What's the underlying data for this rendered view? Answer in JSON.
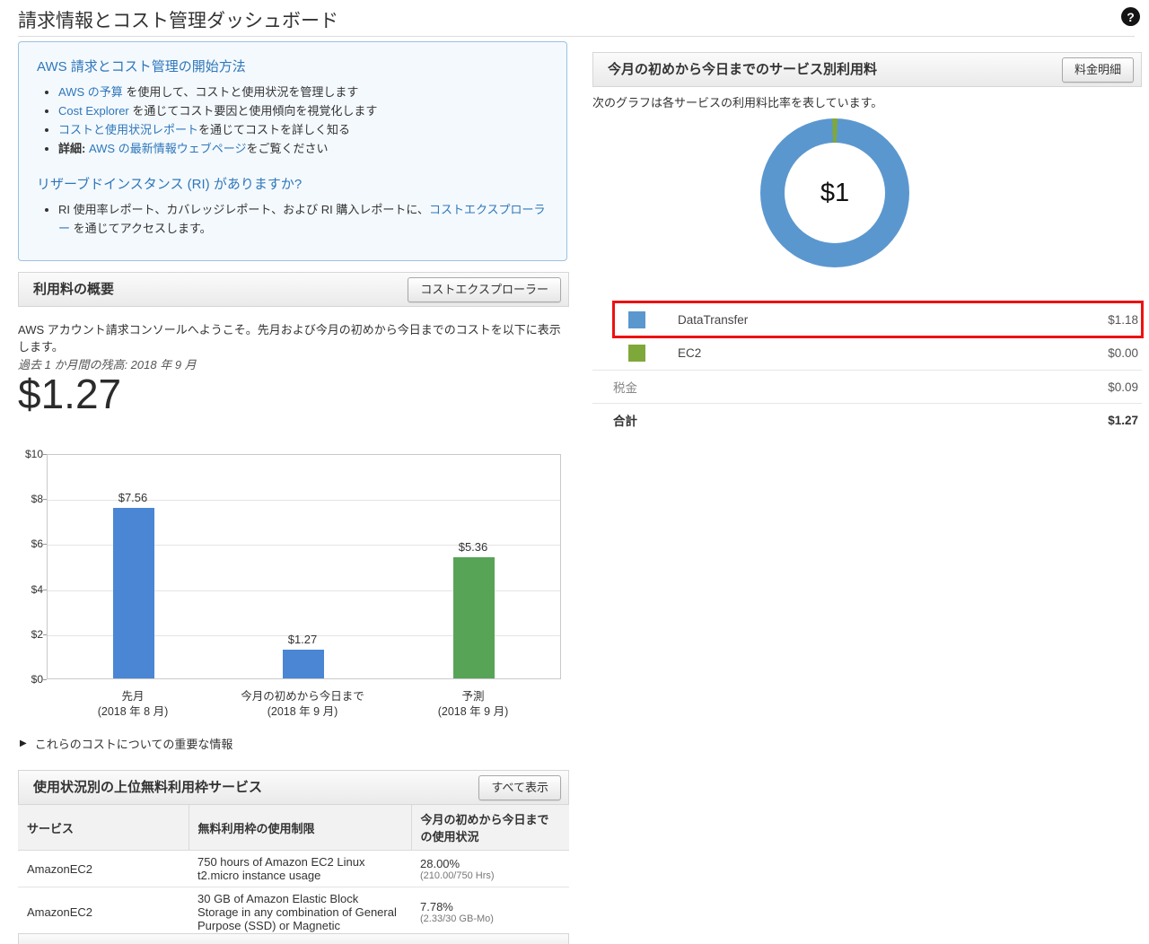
{
  "page": {
    "title": "請求情報とコスト管理ダッシュボード",
    "help_icon": "?"
  },
  "colors": {
    "link_blue": "#2e77bb",
    "bar_blue": "#4a86d3",
    "bar_green": "#57a457",
    "donut_blue": "#5b97cf",
    "donut_green": "#7fa83a",
    "highlight_red": "#ed1111"
  },
  "getting_started": {
    "heading": "AWS 請求とコスト管理の開始方法",
    "bullets": [
      [
        {
          "text": "AWS の予算",
          "style": "link"
        },
        {
          "text": " を使用して、コストと使用状況を管理します",
          "style": "plain"
        }
      ],
      [
        {
          "text": "Cost Explorer",
          "style": "link"
        },
        {
          "text": " を通じてコスト要因と使用傾向を視覚化します",
          "style": "plain"
        }
      ],
      [
        {
          "text": "コストと使用状況レポート",
          "style": "link"
        },
        {
          "text": "を通じてコストを詳しく知る",
          "style": "plain"
        }
      ],
      [
        {
          "text": "詳細:",
          "style": "bold"
        },
        {
          "text": " ",
          "style": "plain"
        },
        {
          "text": "AWS の最新情報ウェブページ",
          "style": "link"
        },
        {
          "text": "をご覧ください",
          "style": "plain"
        }
      ]
    ],
    "ri_heading": "リザーブドインスタンス (RI) がありますか?",
    "ri_bullets": [
      [
        {
          "text": "RI 使用率レポート、カバレッジレポート、および RI 購入レポートに、",
          "style": "plain"
        },
        {
          "text": "コストエクスプローラー",
          "style": "link"
        },
        {
          "text": " を通じてアクセスします。",
          "style": "plain"
        }
      ]
    ]
  },
  "usage_summary": {
    "header": "利用料の概要",
    "button": "コストエクスプローラー",
    "welcome": "AWS アカウント請求コンソールへようこそ。先月および今月の初めから今日までのコストを以下に表示します。",
    "balance_label": "過去 1 か月間の残高: 2018 年 9 月",
    "amount": "$1.27",
    "important_info": "これらのコストについての重要な情報",
    "disclosure_icon": "▶"
  },
  "chart_data": [
    {
      "type": "bar",
      "title": "利用料の概要 (先月・今月・予測)",
      "categories": [
        [
          "先月",
          "(2018 年 8 月)"
        ],
        [
          "今月の初めから今日まで",
          "(2018 年 9 月)"
        ],
        [
          "予測",
          "(2018 年 9 月)"
        ]
      ],
      "values": [
        7.56,
        1.27,
        5.36
      ],
      "data_labels": [
        "$7.56",
        "$1.27",
        "$5.36"
      ],
      "bar_colors": [
        "#4a86d3",
        "#4a86d3",
        "#57a457"
      ],
      "yticks": [
        "$0",
        "$2",
        "$4",
        "$6",
        "$8",
        "$10"
      ],
      "ylim": [
        0,
        10
      ],
      "grid": true,
      "legend": "none"
    },
    {
      "type": "pie",
      "donut": true,
      "center_label": "$1",
      "slices": [
        {
          "name": "DataTransfer",
          "value": 1.18,
          "color": "#5b97cf"
        },
        {
          "name": "EC2",
          "value": 0.0,
          "color": "#7fa83a"
        }
      ],
      "legend_position": "below"
    }
  ],
  "service_charges": {
    "header": "今月の初めから今日までのサービス別利用料",
    "button": "料金明細",
    "subtitle": "次のグラフは各サービスの利用料比率を表しています。",
    "center_label": "$1",
    "rows": [
      {
        "label": "DataTransfer",
        "value": "$1.18",
        "swatch": "#5b97cf",
        "kind": "service",
        "highlighted": true
      },
      {
        "label": "EC2",
        "value": "$0.00",
        "swatch": "#7fa83a",
        "kind": "service",
        "highlighted": false
      },
      {
        "label": "税金",
        "value": "$0.09",
        "kind": "plain",
        "highlighted": false
      },
      {
        "label": "合計",
        "value": "$1.27",
        "kind": "total",
        "highlighted": false
      }
    ]
  },
  "free_tier": {
    "header": "使用状況別の上位無料利用枠サービス",
    "button": "すべて表示",
    "columns": [
      "サービス",
      "無料利用枠の使用制限",
      "今月の初めから今日までの使用状況"
    ],
    "rows": [
      {
        "service": "AmazonEC2",
        "limit": "750 hours of Amazon EC2 Linux t2.micro instance usage",
        "usage_pct": "28.00%",
        "usage_detail": "(210.00/750 Hrs)"
      },
      {
        "service": "AmazonEC2",
        "limit": "30 GB of Amazon Elastic Block Storage in any combination of General Purpose (SSD) or Magnetic",
        "usage_pct": "7.78%",
        "usage_detail": "(2.33/30 GB-Mo)"
      }
    ]
  }
}
